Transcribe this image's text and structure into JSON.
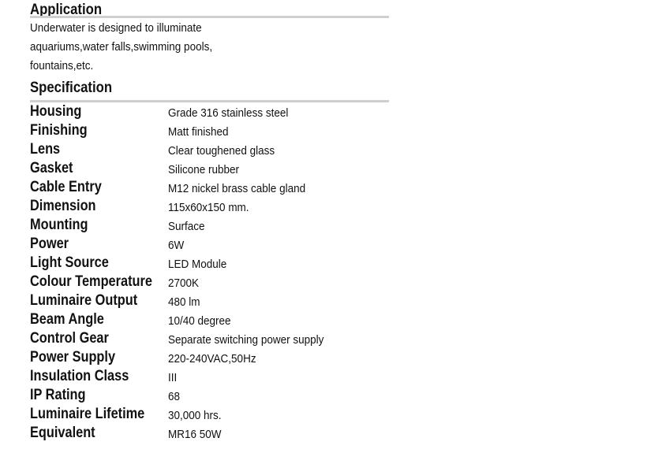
{
  "application": {
    "heading": "Application",
    "lines": [
      "Underwater is designed to illuminate",
      "aquariums,water falls,swimming pools,",
      "fountains,etc."
    ]
  },
  "specification": {
    "heading": "Specification",
    "rows": [
      {
        "label": "Housing",
        "value": "Grade 316 stainless steel"
      },
      {
        "label": "Finishing",
        "value": "Matt finished"
      },
      {
        "label": "Lens",
        "value": "Clear toughened glass"
      },
      {
        "label": "Gasket",
        "value": "Silicone rubber"
      },
      {
        "label": "Cable Entry",
        "value": "M12 nickel brass cable gland"
      },
      {
        "label": "Dimension",
        "value": "115x60x150 mm."
      },
      {
        "label": "Mounting",
        "value": "Surface"
      },
      {
        "label": "Power",
        "value": "6W"
      },
      {
        "label": "Light Source",
        "value": "LED Module"
      },
      {
        "label": "Colour Temperature",
        "value": "2700K"
      },
      {
        "label": "Luminaire Output",
        "value": "480 lm"
      },
      {
        "label": "Beam Angle",
        "value": "10/40 degree"
      },
      {
        "label": "Control Gear",
        "value": "Separate switching power supply"
      },
      {
        "label": "Power Supply",
        "value": "220-240VAC,50Hz"
      },
      {
        "label": "Insulation Class",
        "value": "III"
      },
      {
        "label": "IP Rating",
        "value": "68"
      },
      {
        "label": "Luminaire Lifetime",
        "value": "30,000 hrs."
      },
      {
        "label": "Equivalent",
        "value": "MR16 50W"
      }
    ]
  },
  "colors": {
    "rule": "#cfcfcf"
  }
}
